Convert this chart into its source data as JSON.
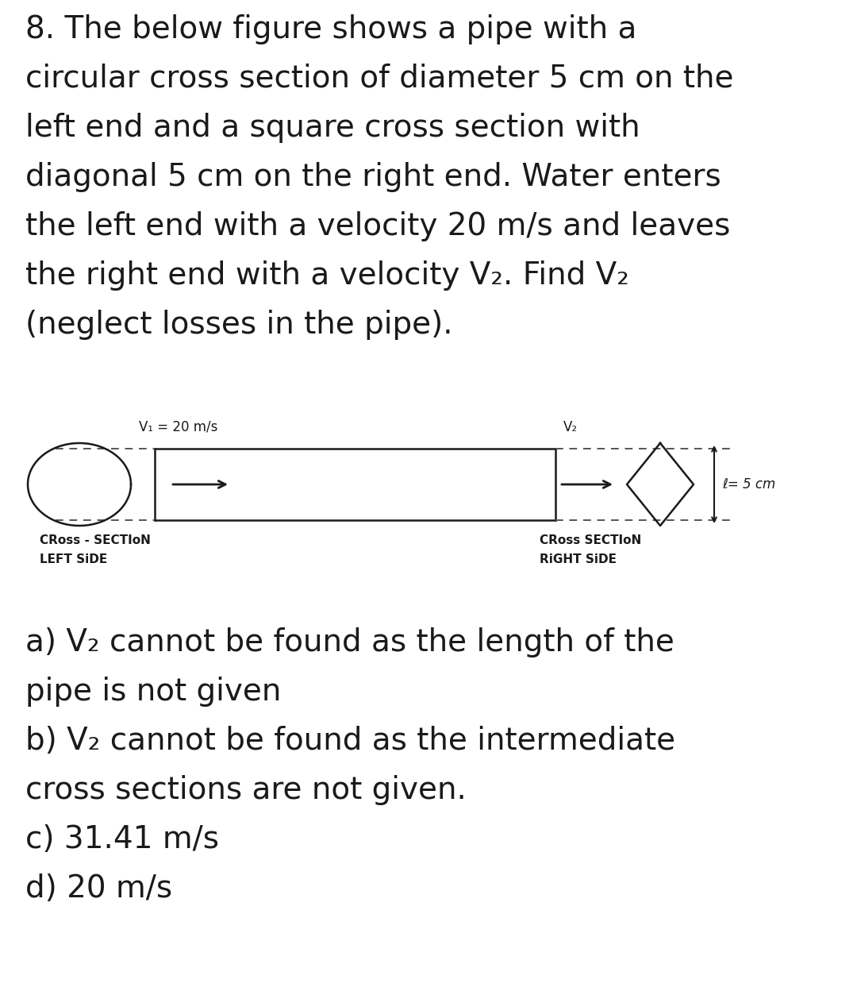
{
  "background_color": "#ffffff",
  "question_text_lines": [
    "8. The below figure shows a pipe with a",
    "circular cross section of diameter 5 cm on the",
    "left end and a square cross section with",
    "diagonal 5 cm on the right end. Water enters",
    "the left end with a velocity 20 m/s and leaves",
    "the right end with a velocity V₂. Find V₂",
    "(neglect losses in the pipe)."
  ],
  "question_fontsize": 28,
  "v1_label": "V₁ = 20 m/s",
  "v2_label": "V₂",
  "diagonal_label": "ℓ= 5 cm",
  "left_label_line1": "CRoss - SECTIoN",
  "left_label_line2": "LEFT SiDE",
  "right_label_line1": "CRoss SECTIoN",
  "right_label_line2": "RiGHT SiDE",
  "answer_lines": [
    "a) V₂ cannot be found as the length of the",
    "pipe is not given",
    "b) V₂ cannot be found as the intermediate",
    "cross sections are not given.",
    "c) 31.41 m/s",
    "d) 20 m/s"
  ],
  "answer_fontsize": 28,
  "diagram_color": "#1a1a1a",
  "dashed_color": "#555555"
}
